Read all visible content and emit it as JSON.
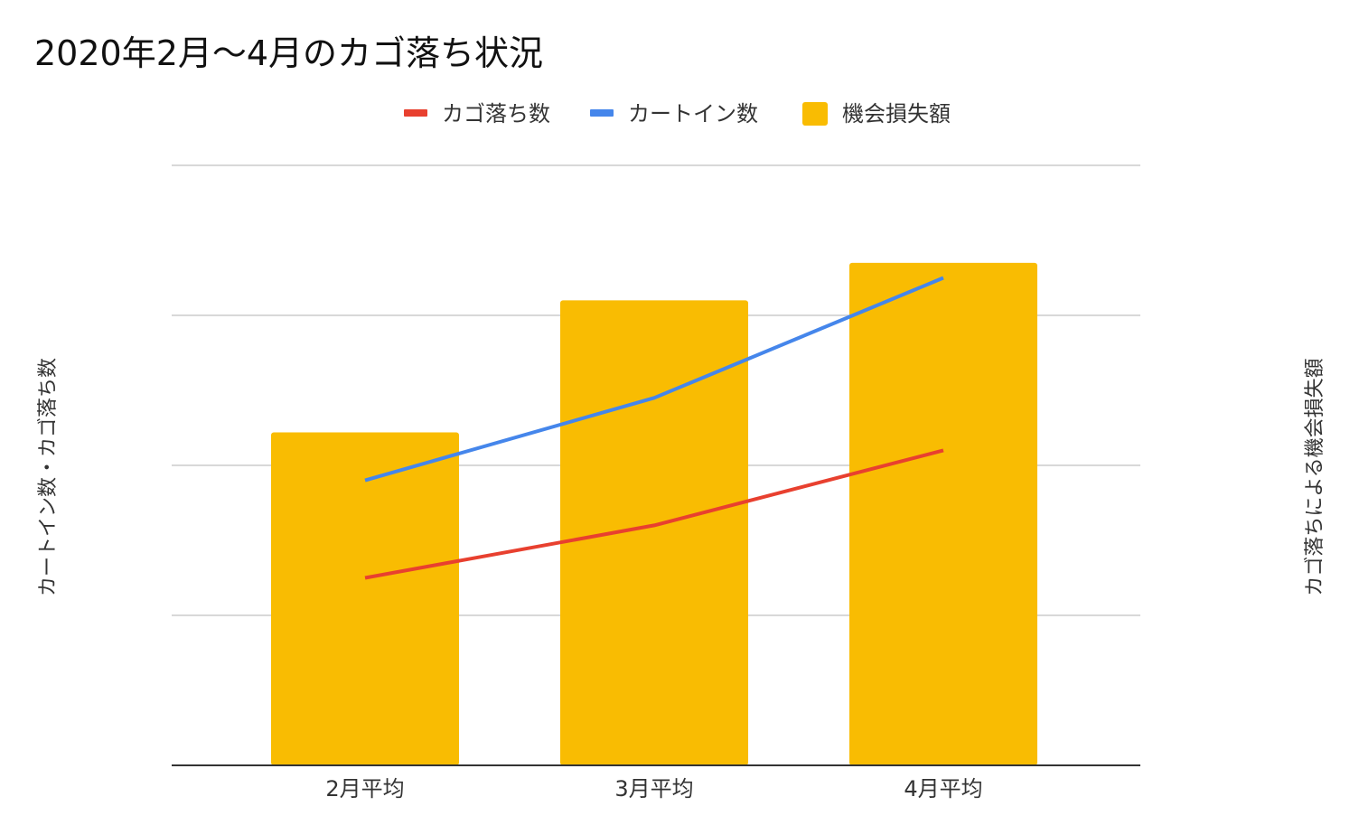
{
  "chart_data": {
    "type": "bar",
    "title": "2020年2月～4月のカゴ落ち状況",
    "categories": [
      "2月平均",
      "3月平均",
      "4月平均"
    ],
    "series": [
      {
        "name": "機会損失額",
        "kind": "bar",
        "axis": "right",
        "color": "#F9BC02",
        "values": [
          2.22,
          3.1,
          3.35
        ]
      },
      {
        "name": "カゴ落ち数",
        "kind": "line",
        "axis": "left",
        "color": "#E8402F",
        "values": [
          1.25,
          1.6,
          2.1
        ]
      },
      {
        "name": "カートイン数",
        "kind": "line",
        "axis": "left",
        "color": "#4586EB",
        "values": [
          1.9,
          2.45,
          3.25
        ]
      }
    ],
    "legend": [
      "カゴ落ち数",
      "カートイン数",
      "機会損失額"
    ],
    "legend_position": "top",
    "ylabel_left": "カートイン数・カゴ落ち数",
    "ylabel_right": "カゴ落ちによる機会損失額",
    "ylim": [
      0,
      4
    ],
    "gridlines": 5,
    "grid": true
  }
}
